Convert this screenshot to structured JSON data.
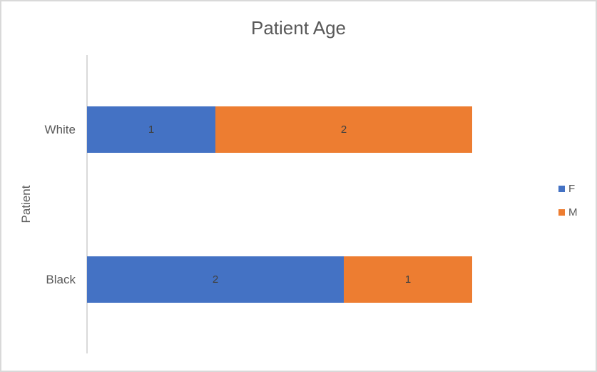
{
  "chart_data": {
    "type": "bar",
    "orientation": "horizontal",
    "stacked": true,
    "title": "Patient Age",
    "xlabel": "",
    "ylabel": "Patient",
    "categories": [
      "White",
      "Black"
    ],
    "categories_display_order": "top-to-bottom",
    "series": [
      {
        "name": "F",
        "color": "#4472C4",
        "values": [
          1,
          2
        ]
      },
      {
        "name": "M",
        "color": "#ED7D31",
        "values": [
          2,
          1
        ]
      }
    ],
    "xlim": [
      0,
      3
    ],
    "grid": false,
    "legend_position": "right",
    "data_labels": true
  },
  "colors": {
    "series_f": "#4472C4",
    "series_m": "#ED7D31",
    "title_text": "#595959",
    "axis_text": "#595959",
    "data_label_text": "#404040",
    "axis_line": "#D9D9D9",
    "frame_border": "#D9D9D9",
    "background": "#FFFFFF"
  }
}
